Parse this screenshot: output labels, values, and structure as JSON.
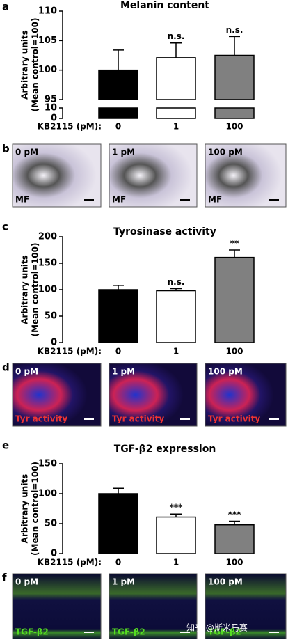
{
  "chart_data": [
    {
      "type": "bar",
      "title": "Melanin content",
      "y_label": [
        "Arbitrary units",
        "(Mean control=100)"
      ],
      "x_label": "KB2115 (pM):",
      "categories": [
        "0",
        "1",
        "100"
      ],
      "values": [
        100,
        102.1,
        102.5
      ],
      "errors": [
        3.4,
        2.5,
        3.2
      ],
      "annotations": [
        null,
        "n.s.",
        "n.s."
      ],
      "colors": [
        "#000000",
        "#ffffff",
        "#808080"
      ],
      "ylim": [
        0,
        110
      ],
      "ybreak": [
        10,
        95
      ],
      "yticks": [
        0,
        10,
        95,
        100,
        105,
        110
      ]
    },
    {
      "type": "bar",
      "title": "Tyrosinase activity",
      "y_label": [
        "Arbitrary units",
        "(Mean control=100)"
      ],
      "x_label": "KB2115 (pM):",
      "categories": [
        "0",
        "1",
        "100"
      ],
      "values": [
        100,
        98,
        161
      ],
      "errors": [
        8,
        4,
        14
      ],
      "annotations": [
        null,
        "n.s.",
        "**"
      ],
      "colors": [
        "#000000",
        "#ffffff",
        "#808080"
      ],
      "ylim": [
        0,
        200
      ],
      "yticks": [
        0,
        50,
        100,
        150,
        200
      ]
    },
    {
      "type": "bar",
      "title": "TGF-β2 expression",
      "y_label": [
        "Arbitrary units",
        "(Mean control=100)"
      ],
      "x_label": "KB2115 (pM):",
      "categories": [
        "0",
        "1",
        "100"
      ],
      "values": [
        100,
        61,
        48
      ],
      "errors": [
        9,
        5,
        6
      ],
      "annotations": [
        null,
        "***",
        "***"
      ],
      "colors": [
        "#000000",
        "#ffffff",
        "#808080"
      ],
      "ylim": [
        0,
        150
      ],
      "yticks": [
        0,
        50,
        100,
        150
      ]
    }
  ],
  "panel_letters": [
    "a",
    "b",
    "c",
    "d",
    "e",
    "f"
  ],
  "image_panels": [
    {
      "conditions": [
        "0 pM",
        "1 pM",
        "100 pM"
      ],
      "stain": "MF"
    },
    {
      "conditions": [
        "0 pM",
        "1 pM",
        "100 pM"
      ],
      "stain": "Tyr activity"
    },
    {
      "conditions": [
        "0 pM",
        "1 pM",
        "100 pM"
      ],
      "stain": "TGF-β2"
    }
  ],
  "watermark": "知乎 @斯米马赛"
}
